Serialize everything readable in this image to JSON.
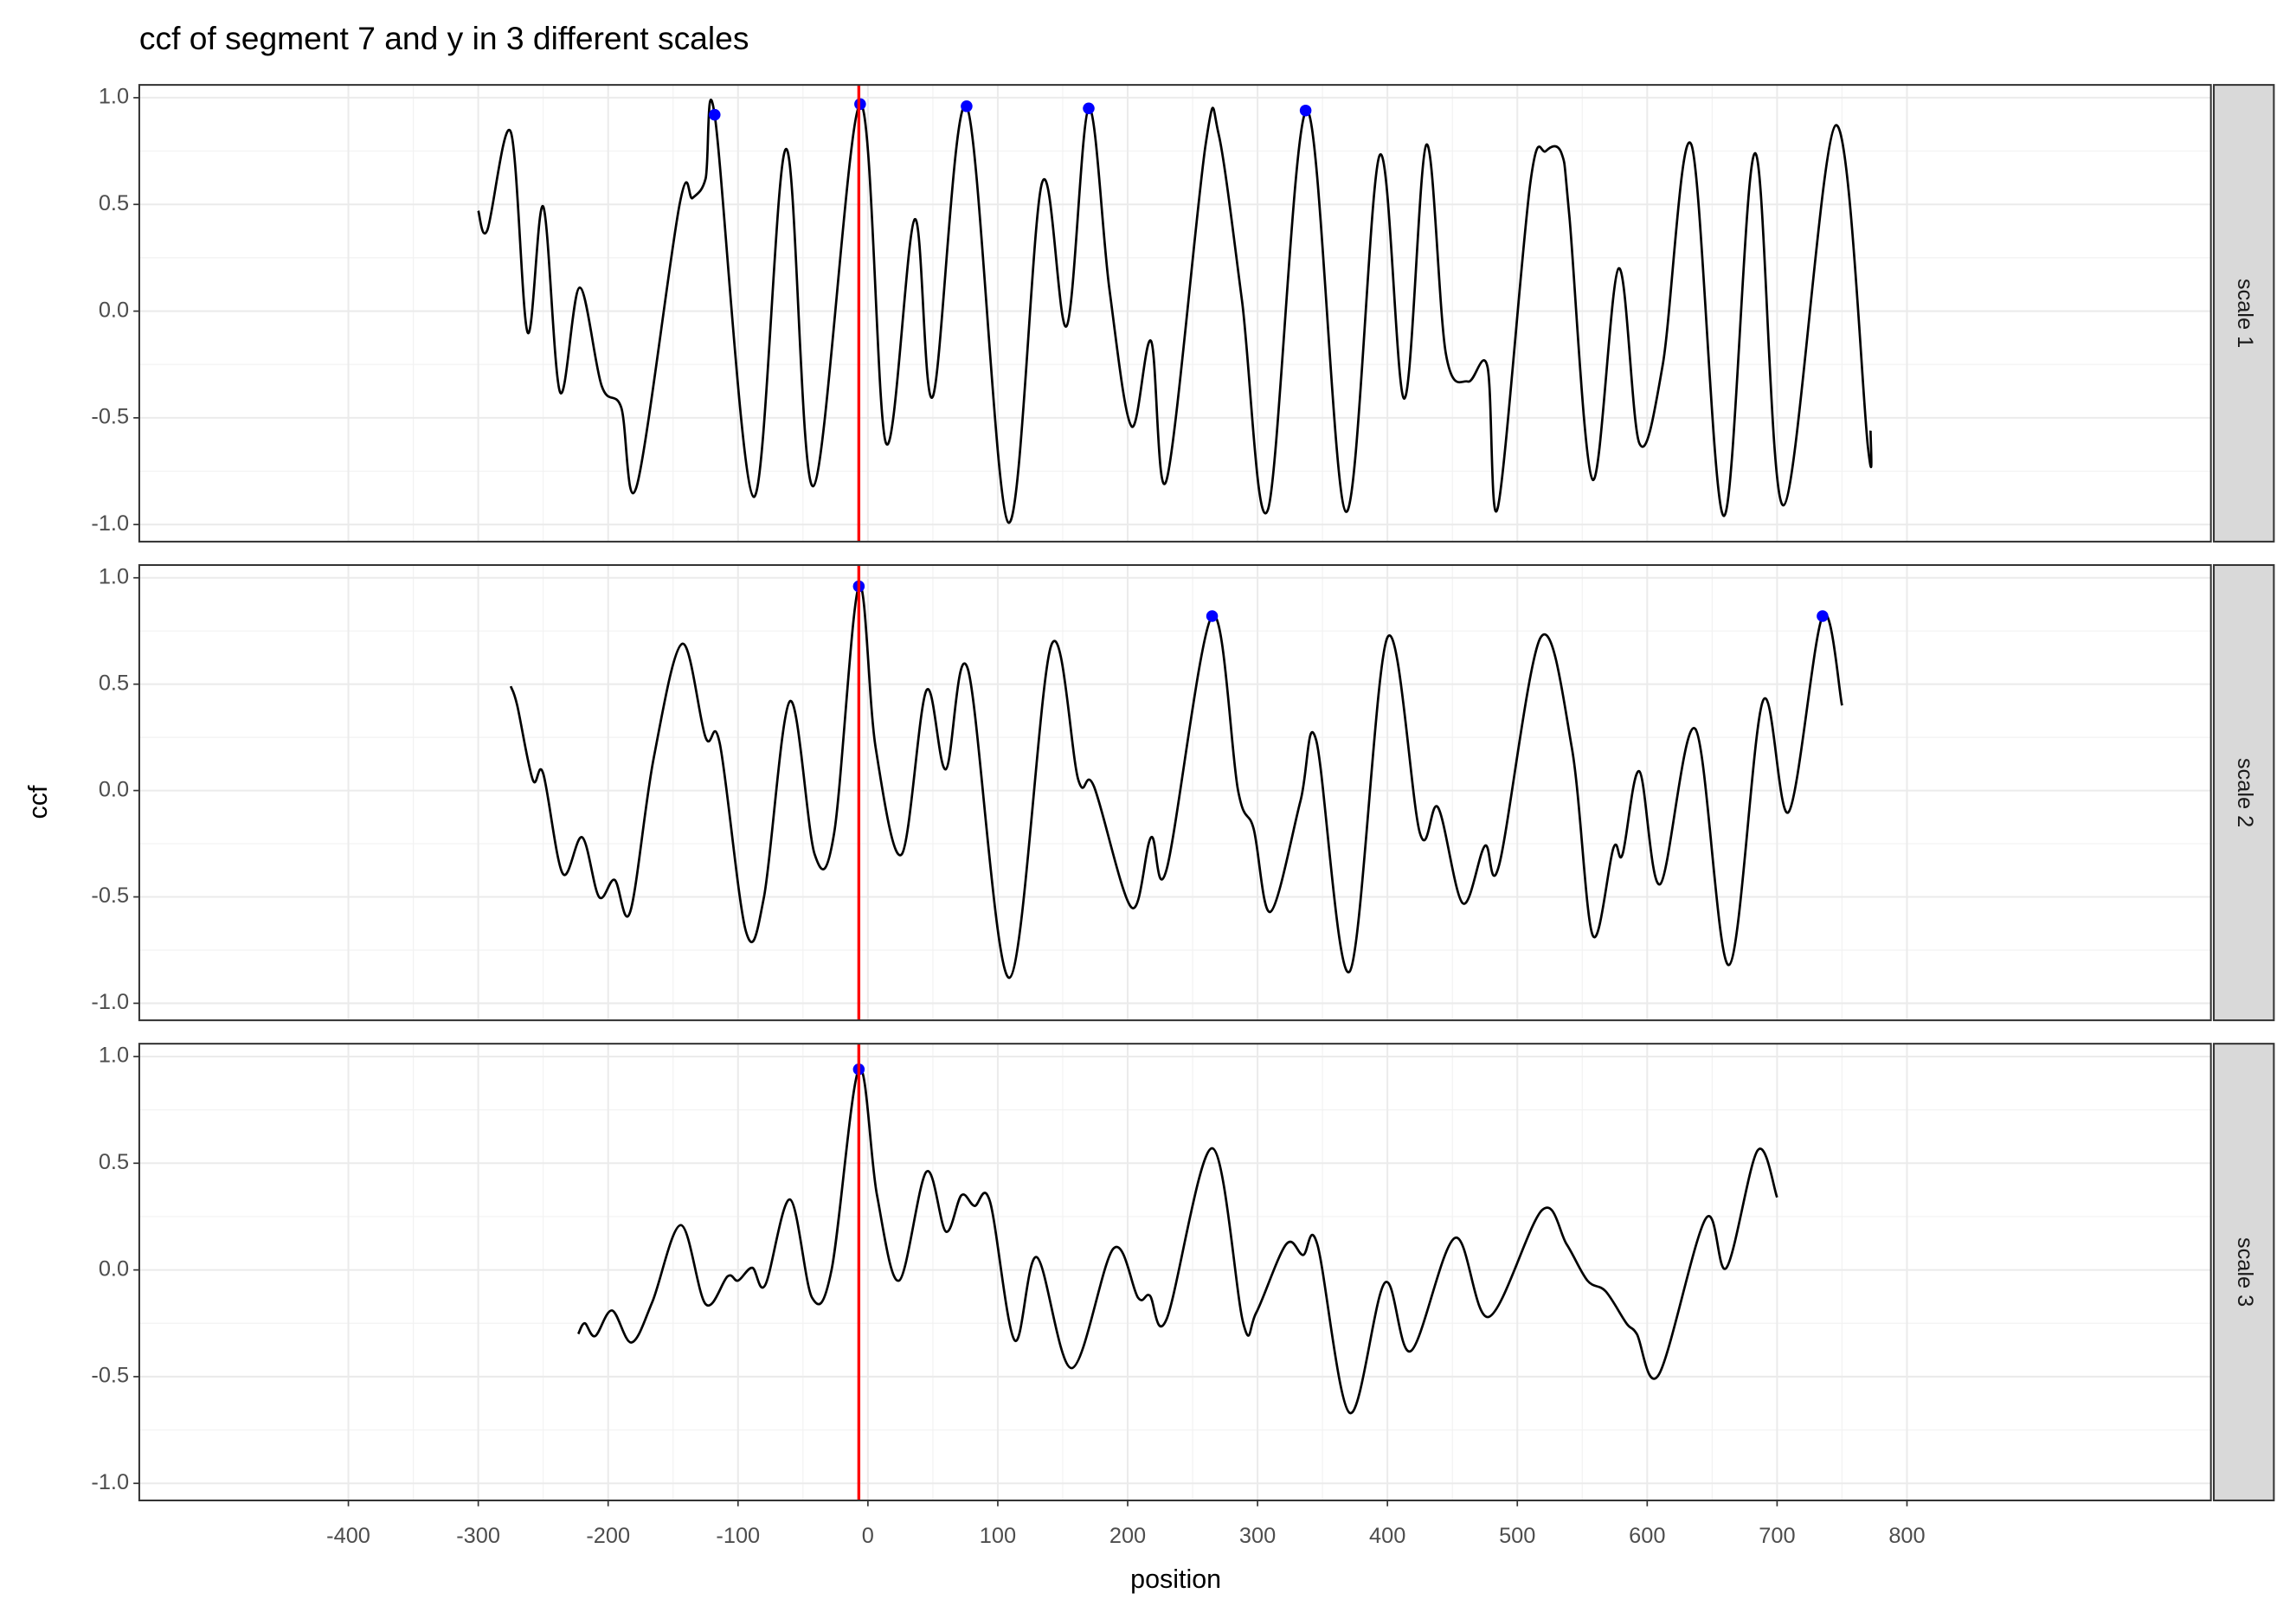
{
  "title": "ccf of segment 7 and y in 3 different scales",
  "x_label": "position",
  "y_label": "ccf",
  "chart_data": [
    {
      "type": "line",
      "facet": "scale 1",
      "color": "#000000",
      "peak_color": "#0000ff",
      "vline": -7,
      "vline_color": "#ff0000",
      "xlim": [
        -561,
        1034
      ],
      "xticks": [
        -400,
        -300,
        -200,
        -100,
        0,
        100,
        200,
        300,
        400,
        500,
        600,
        700,
        800
      ],
      "ylim": [
        -1.08,
        1.06
      ],
      "yticks": [
        {
          "value": -1,
          "label": "-1.0"
        },
        -0.5,
        {
          "value": 0,
          "label": "0.0"
        },
        0.5,
        {
          "value": 1,
          "label": "1.0"
        }
      ],
      "grid": true,
      "x": [
        -300,
        -293,
        -275,
        -262,
        -250,
        -237,
        -222,
        -205,
        -190,
        -178,
        -145,
        -135,
        -125,
        -118,
        -88,
        -63,
        -42,
        -6,
        14,
        36,
        50,
        76,
        108,
        134,
        153,
        170,
        186,
        203,
        218,
        230,
        260,
        270,
        288,
        308,
        338,
        368,
        394,
        413,
        430,
        445,
        462,
        477,
        485,
        510,
        522,
        534,
        540,
        558,
        578,
        594,
        612,
        634,
        659,
        683,
        705,
        745,
        770,
        772
      ],
      "values": [
        0.47,
        0.38,
        0.84,
        -0.1,
        0.49,
        -0.38,
        0.11,
        -0.35,
        -0.45,
        -0.82,
        0.5,
        0.53,
        0.62,
        0.92,
        -0.87,
        0.76,
        -0.82,
        0.97,
        -0.62,
        0.43,
        -0.4,
        0.96,
        -0.99,
        0.6,
        -0.07,
        0.95,
        0.1,
        -0.54,
        -0.14,
        -0.79,
        0.78,
        0.83,
        0.05,
        -0.93,
        0.94,
        -0.94,
        0.73,
        -0.41,
        0.78,
        -0.2,
        -0.33,
        -0.26,
        -0.92,
        0.6,
        0.75,
        0.74,
        0.45,
        -0.79,
        0.2,
        -0.62,
        -0.25,
        0.78,
        -0.96,
        0.74,
        -0.91,
        0.87,
        -0.64,
        -0.56
      ],
      "peaks": {
        "x": [
          -118,
          -6,
          76,
          170,
          337
        ],
        "values": [
          0.92,
          0.97,
          0.96,
          0.95,
          0.94
        ]
      }
    },
    {
      "type": "line",
      "facet": "scale 2",
      "color": "#000000",
      "peak_color": "#0000ff",
      "vline": -7,
      "vline_color": "#ff0000",
      "xlim": [
        -561,
        1034
      ],
      "xticks": [
        -400,
        -300,
        -200,
        -100,
        0,
        100,
        200,
        300,
        400,
        500,
        600,
        700,
        800
      ],
      "ylim": [
        -1.08,
        1.06
      ],
      "yticks": [
        {
          "value": -1,
          "label": "-1.0"
        },
        -0.5,
        {
          "value": 0,
          "label": "0.0"
        },
        0.5,
        {
          "value": 1,
          "label": "1.0"
        }
      ],
      "grid": true,
      "x": [
        -275,
        -270,
        -258,
        -250,
        -235,
        -220,
        -207,
        -195,
        -183,
        -165,
        -143,
        -125,
        -114,
        -94,
        -80,
        -60,
        -41,
        -26,
        -7,
        6,
        26,
        45,
        60,
        77,
        109,
        141,
        162,
        174,
        203,
        218,
        230,
        265,
        285,
        297,
        310,
        333,
        345,
        371,
        400,
        425,
        439,
        458,
        475,
        486,
        518,
        542,
        558,
        574,
        581,
        594,
        610,
        637,
        663,
        689,
        709,
        735,
        750
      ],
      "values": [
        0.49,
        0.4,
        0.05,
        0.08,
        -0.39,
        -0.22,
        -0.5,
        -0.42,
        -0.57,
        0.15,
        0.69,
        0.25,
        0.22,
        -0.66,
        -0.5,
        0.42,
        -0.3,
        -0.2,
        0.96,
        0.2,
        -0.3,
        0.47,
        0.1,
        0.57,
        -0.88,
        0.68,
        0.05,
        0.02,
        -0.55,
        -0.22,
        -0.37,
        0.82,
        0.0,
        -0.18,
        -0.57,
        -0.05,
        0.24,
        -0.85,
        0.72,
        -0.2,
        -0.08,
        -0.53,
        -0.26,
        -0.35,
        0.72,
        0.2,
        -0.68,
        -0.27,
        -0.3,
        0.09,
        -0.44,
        0.29,
        -0.82,
        0.42,
        -0.1,
        0.82,
        0.4
      ],
      "peaks": {
        "x": [
          -7,
          265,
          735
        ],
        "values": [
          0.96,
          0.82,
          0.82
        ]
      }
    },
    {
      "type": "line",
      "facet": "scale 3",
      "color": "#000000",
      "peak_color": "#0000ff",
      "vline": -7,
      "vline_color": "#ff0000",
      "xlim": [
        -561,
        1034
      ],
      "xticks": [
        -400,
        -300,
        -200,
        -100,
        0,
        100,
        200,
        300,
        400,
        500,
        600,
        700,
        800
      ],
      "ylim": [
        -1.08,
        1.06
      ],
      "yticks": [
        {
          "value": -1,
          "label": "-1.0"
        },
        -0.5,
        {
          "value": 0,
          "label": "0.0"
        },
        0.5,
        {
          "value": 1,
          "label": "1.0"
        }
      ],
      "grid": true,
      "x": [
        -223,
        -218,
        -210,
        -197,
        -182,
        -166,
        -144,
        -125,
        -108,
        -100,
        -89,
        -79,
        -60,
        -43,
        -28,
        -7,
        7,
        24,
        45,
        60,
        72,
        82,
        94,
        113,
        130,
        157,
        189,
        208,
        217,
        230,
        265,
        289,
        299,
        322,
        335,
        346,
        371,
        398,
        418,
        452,
        478,
        519,
        538,
        554,
        568,
        584,
        592,
        609,
        645,
        661,
        685,
        700
      ],
      "values": [
        -0.3,
        -0.25,
        -0.31,
        -0.19,
        -0.34,
        -0.15,
        0.21,
        -0.16,
        -0.03,
        -0.05,
        0.01,
        -0.07,
        0.33,
        -0.13,
        0.0,
        0.94,
        0.35,
        -0.05,
        0.46,
        0.18,
        0.35,
        0.3,
        0.32,
        -0.33,
        0.06,
        -0.46,
        0.1,
        -0.13,
        -0.12,
        -0.23,
        0.57,
        -0.25,
        -0.2,
        0.12,
        0.07,
        0.12,
        -0.67,
        -0.06,
        -0.38,
        0.15,
        -0.22,
        0.28,
        0.12,
        -0.05,
        -0.1,
        -0.25,
        -0.3,
        -0.49,
        0.24,
        0.01,
        0.56,
        0.34
      ],
      "peaks": {
        "x": [
          -7
        ],
        "values": [
          0.94
        ]
      }
    }
  ]
}
